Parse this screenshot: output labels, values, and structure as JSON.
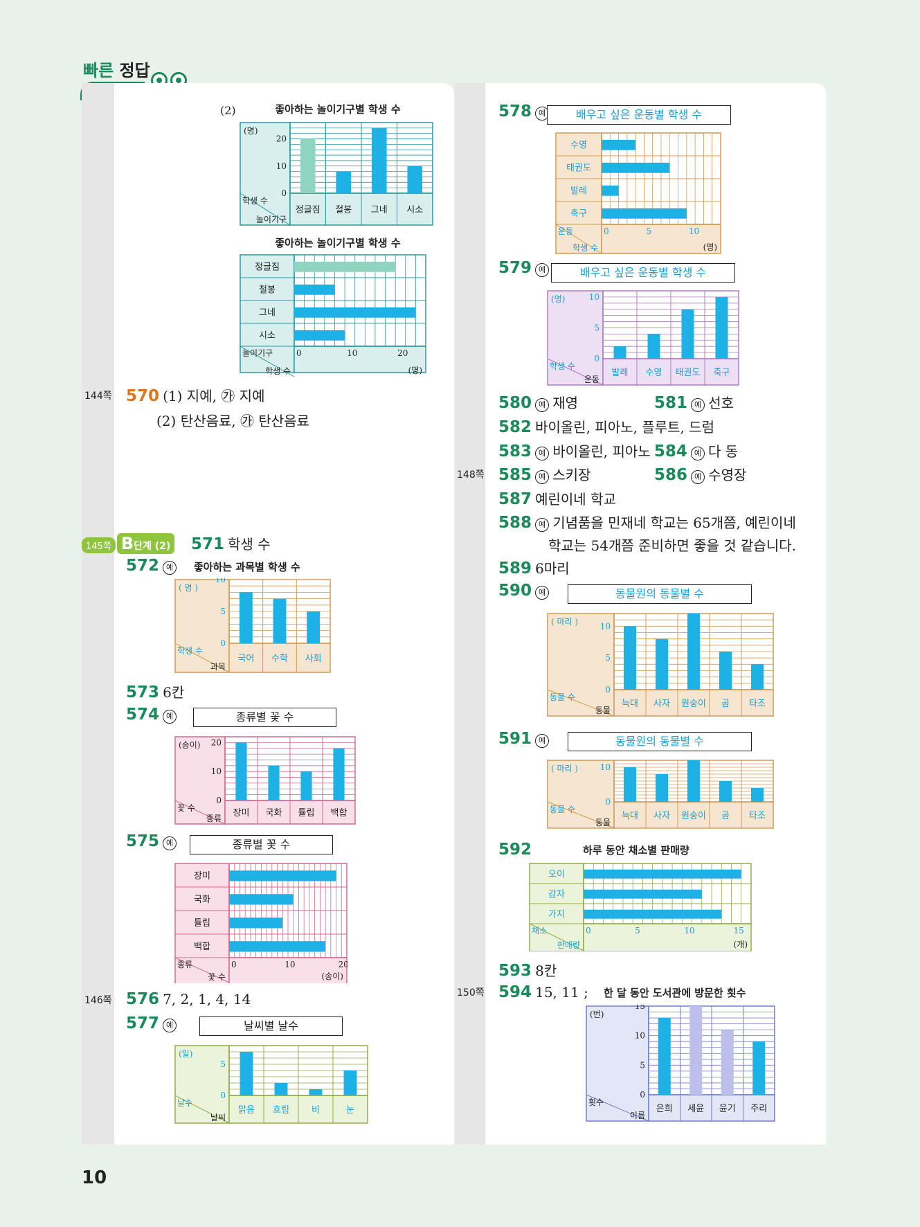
{
  "header": {
    "title_a": "빠른",
    "title_b": "정답"
  },
  "page_number": "10",
  "page_refs": {
    "p144": "144쪽",
    "p145": "145쪽",
    "p146": "146쪽",
    "p148": "148쪽",
    "p150": "150쪽"
  },
  "stage_badge": {
    "stage_letter": "B",
    "stage_text": "단계 (2)"
  },
  "marks": {
    "example": "예"
  },
  "q570": {
    "num": "570",
    "line1": "(1) 지예, ㉮ 지예",
    "line2": "(2) 탄산음료, ㉮ 탄산음료"
  },
  "q571": {
    "num": "571",
    "text": "학생 수"
  },
  "q572": {
    "num": "572"
  },
  "q573": {
    "num": "573",
    "text": "6칸"
  },
  "q574": {
    "num": "574"
  },
  "q575": {
    "num": "575"
  },
  "q576": {
    "num": "576",
    "text": "7, 2, 1, 4, 14"
  },
  "q577": {
    "num": "577"
  },
  "q578": {
    "num": "578"
  },
  "q579": {
    "num": "579"
  },
  "q580": {
    "num": "580",
    "text": "재영"
  },
  "q581": {
    "num": "581",
    "text": "선호"
  },
  "q582": {
    "num": "582",
    "text": "바이올린, 피아노, 플루트, 드럼"
  },
  "q583": {
    "num": "583",
    "text": "바이올린, 피아노"
  },
  "q584": {
    "num": "584",
    "text": "다 동"
  },
  "q585": {
    "num": "585",
    "text": "스키장"
  },
  "q586": {
    "num": "586",
    "text": "수영장"
  },
  "q587": {
    "num": "587",
    "text": "예린이네 학교"
  },
  "q588": {
    "num": "588",
    "line1": "기념품을 민재네 학교는 65개쯤, 예린이네",
    "line2": "학교는 54개쯤 준비하면 좋을 것 같습니다."
  },
  "q589": {
    "num": "589",
    "text": "6마리"
  },
  "q590": {
    "num": "590"
  },
  "q591": {
    "num": "591"
  },
  "q592": {
    "num": "592"
  },
  "q593": {
    "num": "593",
    "text": "8칸"
  },
  "q594": {
    "num": "594",
    "text": "15, 11 ;"
  },
  "colors": {
    "accent": "#1a8a5a",
    "bar": "#1eb1e6",
    "number_orange": "#e0751f"
  },
  "chart_data": [
    {
      "id": "c570a",
      "type": "bar",
      "title": "좋아하는 놀이기구별 학생 수",
      "prefix": "(2)",
      "unit": "(명)",
      "corner_top": "학생 수",
      "corner_bottom": "놀이기구",
      "categories": [
        "정글짐",
        "철봉",
        "그네",
        "시소"
      ],
      "values": [
        20,
        8,
        24,
        10
      ],
      "highlight": [
        0
      ],
      "ticks": [
        0,
        10,
        20
      ],
      "ylim": [
        0,
        26
      ]
    },
    {
      "id": "c570b",
      "type": "hbar",
      "title": "좋아하는 놀이기구별 학생 수",
      "unit": "(명)",
      "corner_top": "놀이기구",
      "corner_bottom": "학생 수",
      "categories": [
        "정글짐",
        "철봉",
        "그네",
        "시소"
      ],
      "values": [
        20,
        8,
        24,
        10
      ],
      "highlight": [
        0
      ],
      "ticks": [
        0,
        10,
        20
      ],
      "xlim": [
        0,
        26
      ]
    },
    {
      "id": "c572",
      "type": "bar",
      "title": "좋아하는 과목별 학생 수",
      "unit": "( 명 )",
      "corner_top": "학생 수",
      "corner_bottom": "과목",
      "categories": [
        "국어",
        "수학",
        "사회"
      ],
      "values": [
        8,
        7,
        5
      ],
      "ticks": [
        0,
        5,
        10
      ],
      "ylim": [
        0,
        10
      ]
    },
    {
      "id": "c574",
      "type": "bar",
      "title": "종류별 꽃 수",
      "unit": "(송이)",
      "corner_top": "꽃 수",
      "corner_bottom": "종류",
      "categories": [
        "장미",
        "국화",
        "튤립",
        "백합"
      ],
      "values": [
        20,
        12,
        10,
        18
      ],
      "ticks": [
        0,
        10,
        20
      ],
      "ylim": [
        0,
        22
      ]
    },
    {
      "id": "c575",
      "type": "hbar",
      "title": "종류별 꽃 수",
      "unit": "(송이)",
      "corner_top": "종류",
      "corner_bottom": "꽃 수",
      "categories": [
        "장미",
        "국화",
        "튤립",
        "백합"
      ],
      "values": [
        20,
        12,
        10,
        18
      ],
      "ticks": [
        0,
        10,
        20
      ],
      "xlim": [
        0,
        22
      ]
    },
    {
      "id": "c577",
      "type": "bar",
      "title": "날씨별 날수",
      "unit": "(일)",
      "corner_top": "날수",
      "corner_bottom": "날씨",
      "categories": [
        "맑음",
        "흐림",
        "비",
        "눈"
      ],
      "values": [
        7,
        2,
        1,
        4
      ],
      "ticks": [
        0,
        5
      ],
      "ylim": [
        0,
        8
      ]
    },
    {
      "id": "c578",
      "type": "hbar",
      "title": "배우고 싶은 운동별 학생 수",
      "unit": "(명)",
      "corner_top": "운동",
      "corner_bottom": "학생 수",
      "categories": [
        "수영",
        "태권도",
        "발레",
        "축구"
      ],
      "values": [
        4,
        8,
        2,
        10
      ],
      "ticks": [
        0,
        5,
        10
      ],
      "xlim": [
        0,
        14
      ]
    },
    {
      "id": "c579",
      "type": "bar",
      "title": "배우고 싶은 운동별 학생 수",
      "unit": "(명)",
      "corner_top": "학생 수",
      "corner_bottom": "운동",
      "categories": [
        "발레",
        "수영",
        "태권도",
        "축구"
      ],
      "values": [
        2,
        4,
        8,
        10
      ],
      "ticks": [
        0,
        5,
        10
      ],
      "ylim": [
        0,
        11
      ]
    },
    {
      "id": "c590",
      "type": "bar",
      "title": "동물원의 동물별 수",
      "unit": "( 마리 )",
      "corner_top": "동물 수",
      "corner_bottom": "동물",
      "categories": [
        "늑대",
        "사자",
        "원숭이",
        "곰",
        "타조"
      ],
      "values": [
        10,
        8,
        12,
        6,
        4
      ],
      "ticks": [
        0,
        5,
        10
      ],
      "ylim": [
        0,
        12
      ]
    },
    {
      "id": "c591",
      "type": "bar",
      "title": "동물원의 동물별 수",
      "unit": "( 마리 )",
      "corner_top": "동물 수",
      "corner_bottom": "동물",
      "categories": [
        "늑대",
        "사자",
        "원숭이",
        "곰",
        "타조"
      ],
      "values": [
        10,
        8,
        12,
        6,
        4
      ],
      "ticks": [
        0,
        10
      ],
      "ylim": [
        0,
        12
      ]
    },
    {
      "id": "c592",
      "type": "hbar",
      "title": "하루 동안 채소별 판매량",
      "unit": "(개)",
      "corner_top": "채소",
      "corner_bottom": "판매량",
      "categories": [
        "오이",
        "감자",
        "가지"
      ],
      "values": [
        16,
        12,
        14
      ],
      "ticks": [
        0,
        5,
        10,
        15
      ],
      "xlim": [
        0,
        17
      ]
    },
    {
      "id": "c594",
      "type": "bar",
      "title": "한 달 동안 도서관에 방문한 횟수",
      "unit": "(번)",
      "corner_top": "횟수",
      "corner_bottom": "이름",
      "categories": [
        "은희",
        "세윤",
        "윤기",
        "주리"
      ],
      "values": [
        13,
        15,
        11,
        9
      ],
      "highlight": [
        1,
        2
      ],
      "ticks": [
        0,
        5,
        10,
        15
      ],
      "ylim": [
        0,
        15
      ]
    }
  ]
}
